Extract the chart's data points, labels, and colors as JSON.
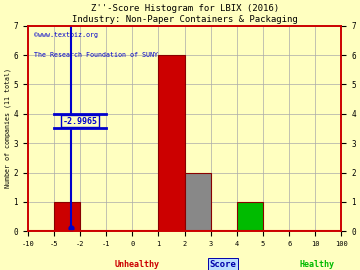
{
  "title_line1": "Z''-Score Histogram for LBIX (2016)",
  "title_line2": "Industry: Non-Paper Containers & Packaging",
  "watermark1": "©www.textbiz.org",
  "watermark2": "The Research Foundation of SUNY",
  "xlabel": "Score",
  "ylabel": "Number of companies (11 total)",
  "bg_color": "#FFFFC0",
  "grid_color": "#AAAAAA",
  "bin_edges": [
    -10,
    -5,
    -2,
    -1,
    0,
    1,
    2,
    3,
    4,
    5,
    6,
    10,
    100
  ],
  "bar_heights": [
    0,
    1,
    0,
    0,
    0,
    6,
    2,
    0,
    1,
    0,
    0,
    0
  ],
  "bar_colors": [
    "#CC0000",
    "#CC0000",
    "#CC0000",
    "#CC0000",
    "#CC0000",
    "#CC0000",
    "#888888",
    "#888888",
    "#00BB00",
    "#00BB00",
    "#00BB00",
    "#00BB00"
  ],
  "ylim": [
    0,
    7
  ],
  "yticks": [
    0,
    1,
    2,
    3,
    4,
    5,
    6,
    7
  ],
  "xtick_labels": [
    "-10",
    "-5",
    "-2",
    "-1",
    "0",
    "1",
    "2",
    "3",
    "4",
    "5",
    "6",
    "10",
    "100"
  ],
  "vline_x_index": 1.6678,
  "vline_label": "-2.9965",
  "vline_color": "#0000CC",
  "unhealthy_label": "Unhealthy",
  "healthy_label": "Healthy",
  "unhealthy_color": "#CC0000",
  "healthy_color": "#00BB00",
  "title_color": "#000000",
  "edge_color": "#880000",
  "spine_color": "#CC0000",
  "n_bins": 12
}
